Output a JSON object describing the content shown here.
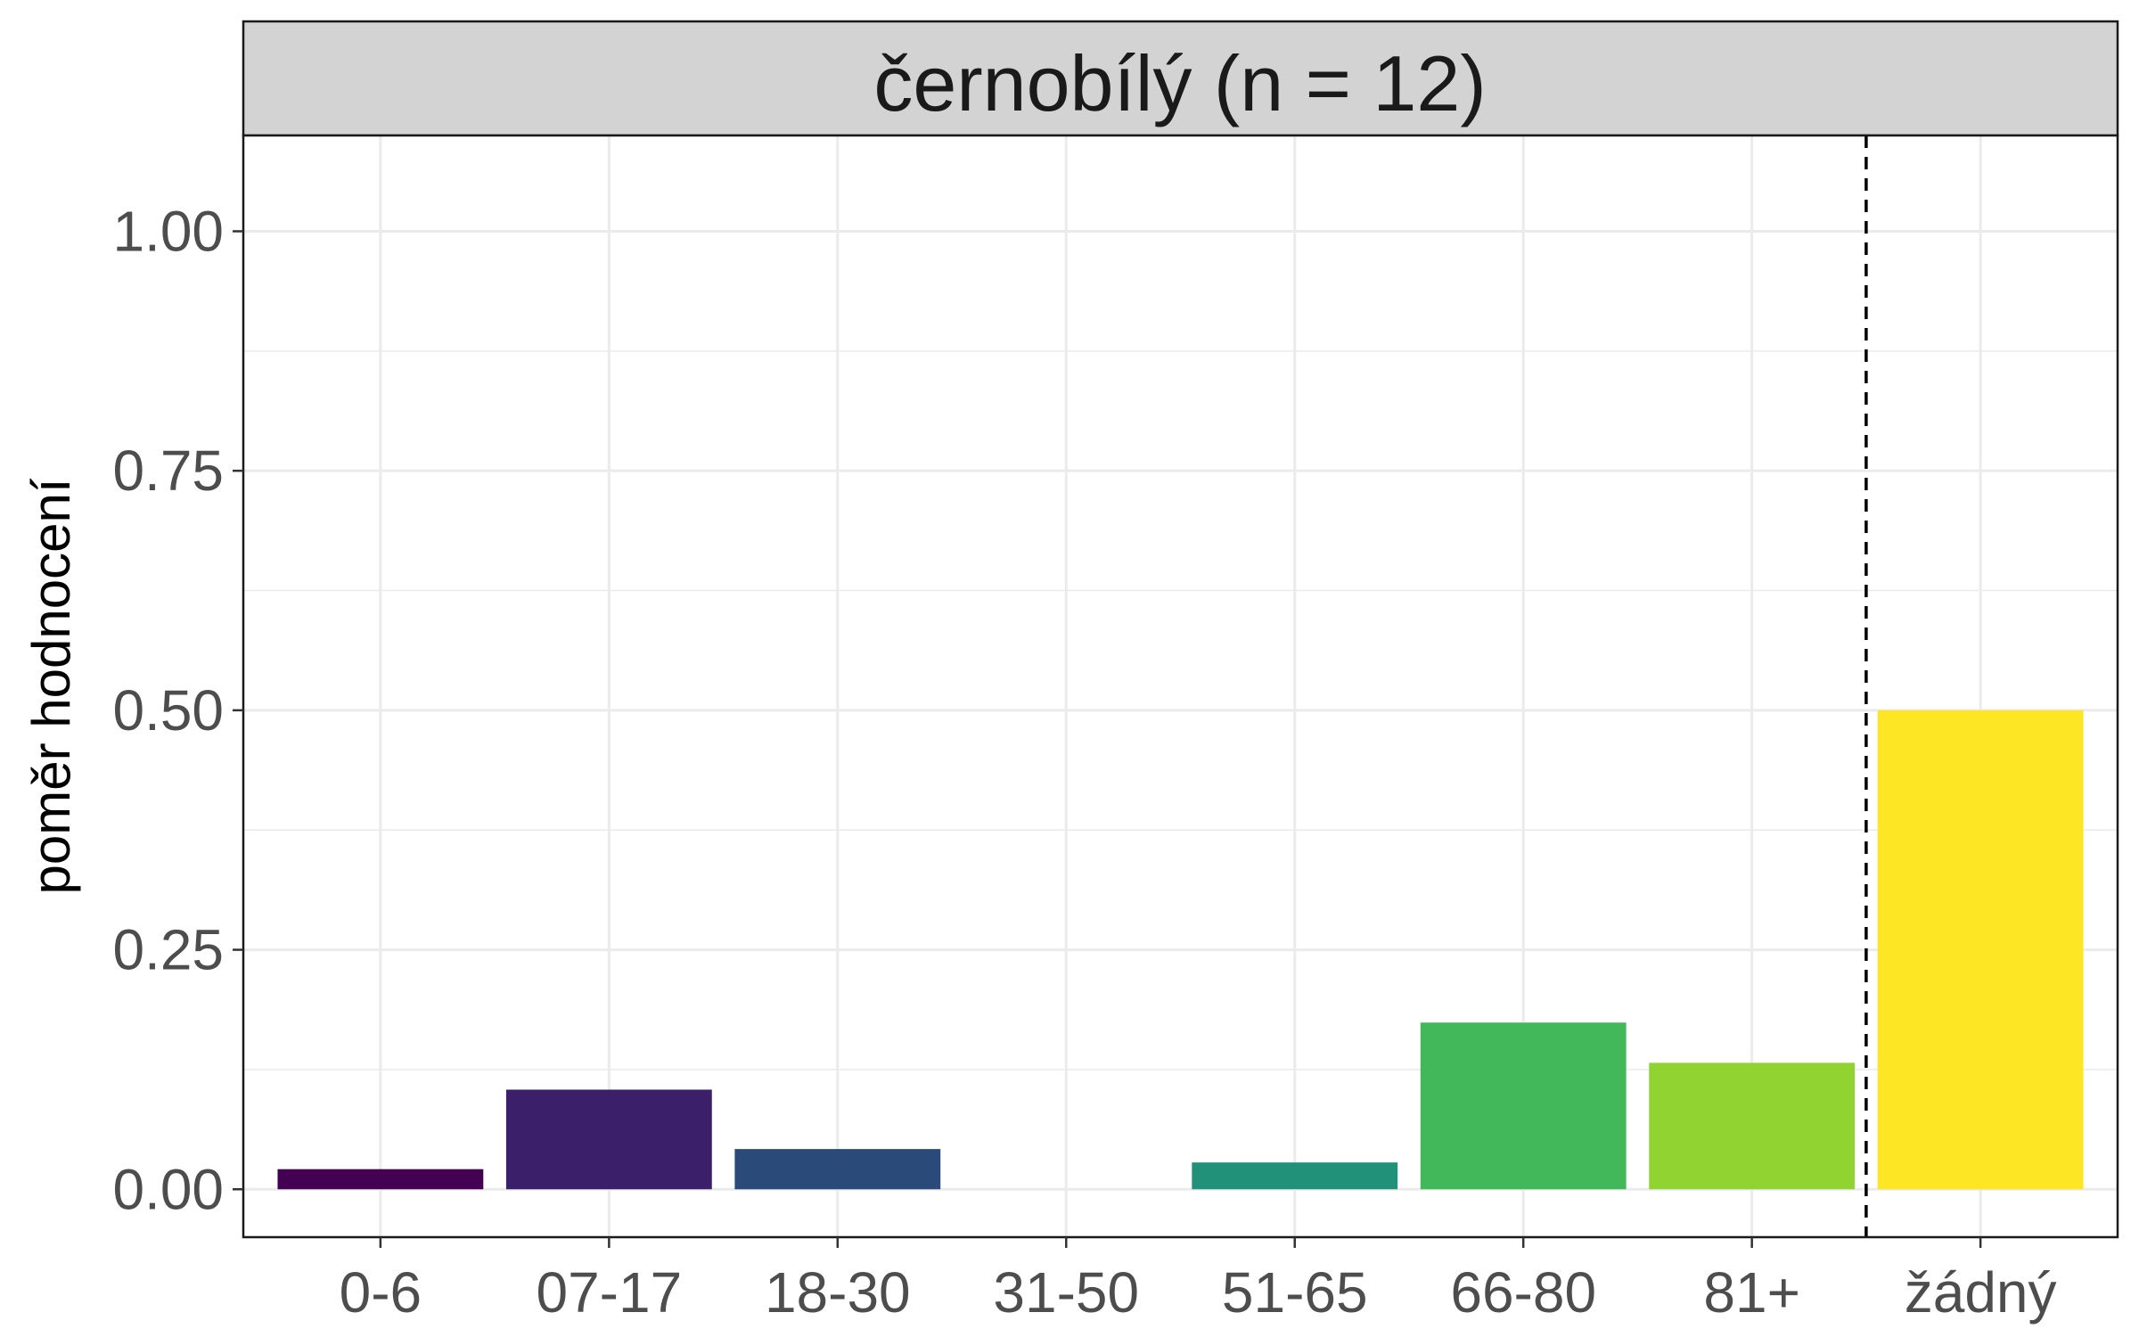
{
  "chart_data": {
    "type": "bar",
    "facet_title": "černobílý (n = 12)",
    "xlabel": "",
    "ylabel": "poměr hodnocení",
    "categories": [
      "0-6",
      "07-17",
      "18-30",
      "31-50",
      "51-65",
      "66-80",
      "81+",
      "žádný"
    ],
    "values": [
      0.021,
      0.104,
      0.042,
      0.0,
      0.028,
      0.174,
      0.132,
      0.5
    ],
    "colors": [
      "#440154",
      "#3B1F6B",
      "#2A4A7A",
      "#21908C",
      "#21917A",
      "#42B85A",
      "#91D432",
      "#FDE725"
    ],
    "ylim": [
      -0.05,
      1.1
    ],
    "yticks": [
      0.0,
      0.25,
      0.5,
      0.75,
      1.0
    ],
    "ytick_labels": [
      "0.00",
      "0.25",
      "0.50",
      "0.75",
      "1.00"
    ],
    "separator_after_category": "81+",
    "separator_style": "dashed",
    "grid": true,
    "theme": "bw"
  }
}
